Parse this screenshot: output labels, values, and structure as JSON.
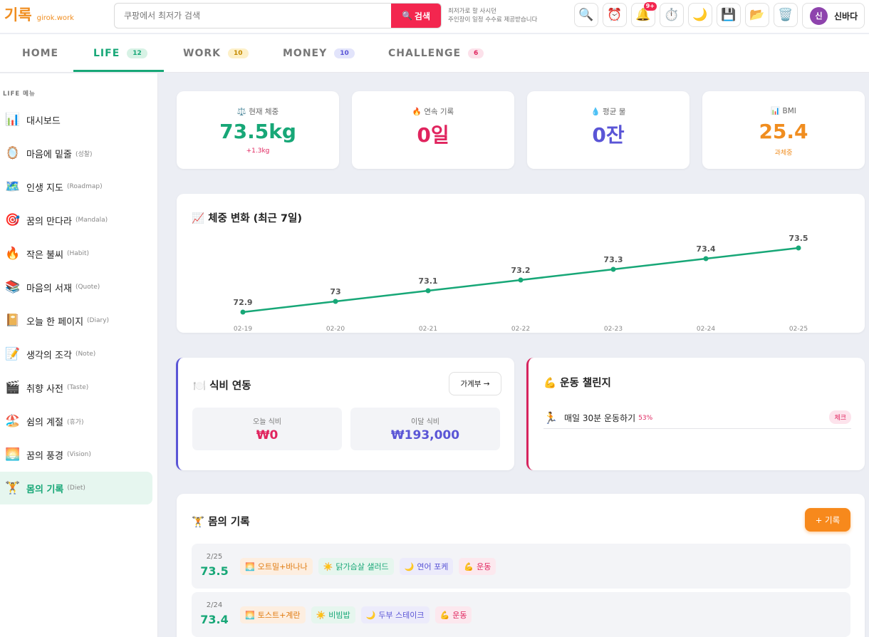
{
  "app": {
    "logo": "기록",
    "domain": "girok.work"
  },
  "search": {
    "placeholder": "쿠팡에서 최저가 검색",
    "button_label": "검색"
  },
  "notice": {
    "line1": "최저가로 할 사시던",
    "line2": "주인장이 일정 수수료 제공받습니다"
  },
  "toolbar": {
    "notification_badge": "9+"
  },
  "user": {
    "initial": "신",
    "name": "신바다"
  },
  "tabs": [
    {
      "label": "HOME",
      "badge": ""
    },
    {
      "label": "LIFE",
      "badge": "12"
    },
    {
      "label": "WORK",
      "badge": "10"
    },
    {
      "label": "MONEY",
      "badge": "10"
    },
    {
      "label": "CHALLENGE",
      "badge": "6"
    }
  ],
  "sidebar": {
    "title": "LIFE 메뉴",
    "items": [
      {
        "icon": "📊",
        "label": "대시보드",
        "sub": ""
      },
      {
        "icon": "🪞",
        "label": "마음에 밑줄",
        "sub": "(성찰)"
      },
      {
        "icon": "🗺️",
        "label": "인생 지도",
        "sub": "(Roadmap)"
      },
      {
        "icon": "🎯",
        "label": "꿈의 만다라",
        "sub": "(Mandala)"
      },
      {
        "icon": "🔥",
        "label": "작은 불씨",
        "sub": "(Habit)"
      },
      {
        "icon": "📚",
        "label": "마음의 서재",
        "sub": "(Quote)"
      },
      {
        "icon": "📔",
        "label": "오늘 한 페이지",
        "sub": "(Diary)"
      },
      {
        "icon": "📝",
        "label": "생각의 조각",
        "sub": "(Note)"
      },
      {
        "icon": "🎬",
        "label": "취향 사전",
        "sub": "(Taste)"
      },
      {
        "icon": "🏖️",
        "label": "쉼의 계절",
        "sub": "(휴가)"
      },
      {
        "icon": "🌅",
        "label": "꿈의 풍경",
        "sub": "(Vision)"
      },
      {
        "icon": "🏋️",
        "label": "몸의 기록",
        "sub": "(Diet)"
      }
    ]
  },
  "stats": [
    {
      "icon": "⚖️",
      "label": "현재 체중",
      "value": "73.5kg",
      "sub": "+1.3kg",
      "color": "#17a777",
      "sub_color": "#e0245e"
    },
    {
      "icon": "🔥",
      "label": "연속 기록",
      "value": "0일",
      "sub": "",
      "color": "#e0245e",
      "sub_color": "#e0245e"
    },
    {
      "icon": "💧",
      "label": "평균 물",
      "value": "0잔",
      "sub": "",
      "color": "#5a55d6",
      "sub_color": "#5a55d6"
    },
    {
      "icon": "📊",
      "label": "BMI",
      "value": "25.4",
      "sub": "과체중",
      "color": "#f08d1f",
      "sub_color": "#f08d1f"
    }
  ],
  "chart": {
    "icon": "📈",
    "title": "체중 변화 (최근 7일)"
  },
  "chart_data": {
    "type": "line",
    "title": "체중 변화 (최근 7일)",
    "categories": [
      "02-19",
      "02-20",
      "02-21",
      "02-22",
      "02-23",
      "02-24",
      "02-25"
    ],
    "series": [
      {
        "values": [
          72.9,
          73,
          73.1,
          73.2,
          73.3,
          73.4,
          73.5
        ]
      }
    ],
    "color": "#17a777",
    "grid": false,
    "legend": "none"
  },
  "food": {
    "icon": "🍽️",
    "title": "식비 연동",
    "button": "가계부 →",
    "today_label": "오늘 식비",
    "today_value": "₩0",
    "month_label": "이달 식비",
    "month_value": "₩193,000"
  },
  "exercise": {
    "icon": "💪",
    "title": "운동 챌린지",
    "items": [
      {
        "icon": "🏃",
        "label": "매일 30분 운동하기",
        "pct": "53%",
        "action": "체크"
      }
    ]
  },
  "body": {
    "icon": "🏋️",
    "title": "몸의 기록",
    "add_label": "+ 기록",
    "entries": [
      {
        "date": "2/25",
        "weight": "73.5",
        "breakfast": "오트밀+바나나",
        "lunch": "닭가슴살 샐러드",
        "dinner": "연어 포케",
        "exercise": "운동"
      },
      {
        "date": "2/24",
        "weight": "73.4",
        "breakfast": "토스트+계란",
        "lunch": "비빔밥",
        "dinner": "두부 스테이크",
        "exercise": "운동"
      }
    ]
  }
}
